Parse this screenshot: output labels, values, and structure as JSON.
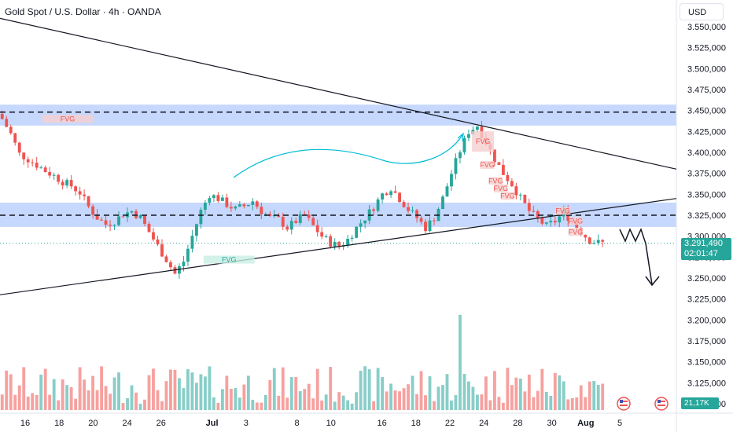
{
  "header": {
    "title": "Gold Spot / U.S. Dollar · 4h · OANDA",
    "currency": "USD"
  },
  "price_tag": {
    "price": "3.291,490",
    "countdown": "02:01:47"
  },
  "volume_tag": "21,17K",
  "colors": {
    "up": "#26a69a",
    "down": "#ef5350",
    "zone": "#5b8ff9",
    "arrow": "#00bcd4"
  },
  "chart_data": {
    "type": "candlestick",
    "y_ticks": [
      "3.550,000",
      "3.525,000",
      "3.500,000",
      "3.475,000",
      "3.450,000",
      "3.425,000",
      "3.400,000",
      "3.375,000",
      "3.350,000",
      "3.325,000",
      "3.300,000",
      "3.275,000",
      "3.250,000",
      "3.225,000",
      "3.200,000",
      "3.175,000",
      "3.150,000",
      "3.125,000",
      "3.100,000"
    ],
    "x_ticks": [
      {
        "label": "16",
        "x": 0
      },
      {
        "label": "18",
        "x": 2
      },
      {
        "label": "20",
        "x": 4
      },
      {
        "label": "24",
        "x": 6
      },
      {
        "label": "26",
        "x": 8
      },
      {
        "label": "Jul",
        "x": 11
      },
      {
        "label": "3",
        "x": 13
      },
      {
        "label": "8",
        "x": 16
      },
      {
        "label": "10",
        "x": 18
      },
      {
        "label": "16",
        "x": 21
      },
      {
        "label": "18",
        "x": 23
      },
      {
        "label": "22",
        "x": 25
      },
      {
        "label": "24",
        "x": 27
      },
      {
        "label": "28",
        "x": 29
      },
      {
        "label": "30",
        "x": 31
      },
      {
        "label": "Aug",
        "x": 33
      },
      {
        "label": "5",
        "x": 35
      }
    ],
    "series_close": [
      3440,
      3422,
      3398,
      3392,
      3385,
      3378,
      3372,
      3365,
      3360,
      3352,
      3335,
      3322,
      3314,
      3318,
      3326,
      3330,
      3322,
      3305,
      3288,
      3272,
      3255,
      3270,
      3300,
      3330,
      3350,
      3345,
      3338,
      3332,
      3336,
      3342,
      3330,
      3322,
      3320,
      3310,
      3318,
      3325,
      3312,
      3300,
      3292,
      3288,
      3296,
      3310,
      3322,
      3335,
      3350,
      3358,
      3345,
      3332,
      3322,
      3310,
      3322,
      3345,
      3375,
      3402,
      3425,
      3432,
      3412,
      3392,
      3375,
      3362,
      3345,
      3330,
      3320,
      3312,
      3318,
      3328,
      3318,
      3305,
      3295,
      3292
    ],
    "levels": [
      {
        "price": 3448,
        "style": "dashed"
      },
      {
        "price": 3325,
        "style": "dashed"
      },
      {
        "price": 3291.49,
        "style": "dotted-current"
      }
    ],
    "zones": [
      {
        "from": 3432,
        "to": 3457
      },
      {
        "from": 3311,
        "to": 3340
      }
    ],
    "trendlines": [
      {
        "from": [
          0,
          3560
        ],
        "to": [
          34.5,
          3380
        ]
      },
      {
        "from": [
          0,
          3230
        ],
        "to": [
          34.5,
          3345
        ]
      }
    ],
    "fvg": [
      {
        "label": "FVG",
        "kind": "bearish",
        "x": [
          1,
          4
        ],
        "price": 3440
      },
      {
        "label": "FVG",
        "kind": "bullish",
        "x": [
          10.5,
          13.5
        ],
        "price": 3272
      },
      {
        "label": "FVG",
        "kind": "bearish",
        "x": [
          26.3,
          27.6
        ],
        "price": 3413
      },
      {
        "label": "FVG",
        "kind": "bearish",
        "x": [
          26.8,
          27.6
        ],
        "price": 3385
      },
      {
        "label": "FVG",
        "kind": "bearish",
        "x": [
          27.3,
          28.1
        ],
        "price": 3366
      },
      {
        "label": "FVG",
        "kind": "bearish",
        "x": [
          27.6,
          28.4
        ],
        "price": 3357
      },
      {
        "label": "FVG",
        "kind": "bearish",
        "x": [
          28.0,
          28.8
        ],
        "price": 3348
      },
      {
        "label": "FVG",
        "kind": "bearish",
        "x": [
          31.2,
          32.1
        ],
        "price": 3330
      },
      {
        "label": "FVG",
        "kind": "bearish",
        "x": [
          32.0,
          32.8
        ],
        "price": 3318
      },
      {
        "label": "FVG",
        "kind": "bearish",
        "x": [
          32.0,
          32.8
        ],
        "price": 3305
      }
    ]
  }
}
